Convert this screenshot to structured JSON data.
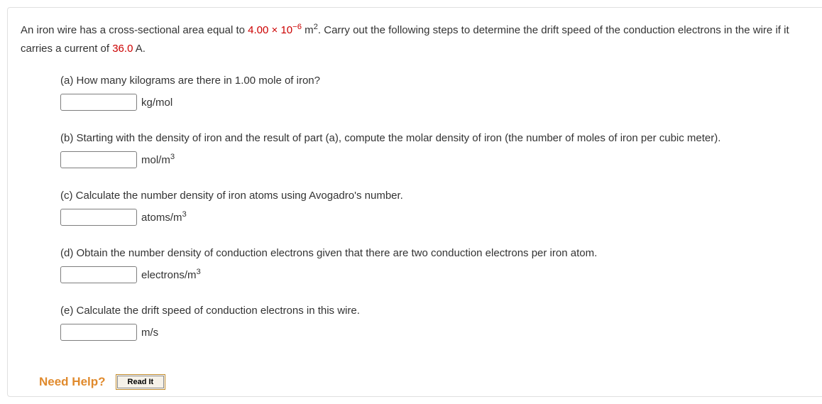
{
  "intro": {
    "text1": "An iron wire has a cross-sectional area equal to ",
    "value1_base": "4.00 × 10",
    "value1_exp": "−6",
    "unit1_base": " m",
    "unit1_exp": "2",
    "text2": ". Carry out the following steps to determine the drift speed of the conduction electrons in the wire if it carries a current of ",
    "value2": "36.0",
    "text3": " A."
  },
  "parts": {
    "a": {
      "prompt": "(a) How many kilograms are there in 1.00 mole of iron?",
      "unit": "kg/mol",
      "unit_sup": ""
    },
    "b": {
      "prompt": "(b) Starting with the density of iron and the result of part (a), compute the molar density of iron (the number of moles of iron per cubic meter).",
      "unit": "mol/m",
      "unit_sup": "3"
    },
    "c": {
      "prompt": "(c) Calculate the number density of iron atoms using Avogadro's number.",
      "unit": "atoms/m",
      "unit_sup": "3"
    },
    "d": {
      "prompt": "(d) Obtain the number density of conduction electrons given that there are two conduction electrons per iron atom.",
      "unit": "electrons/m",
      "unit_sup": "3"
    },
    "e": {
      "prompt": "(e) Calculate the drift speed of conduction electrons in this wire.",
      "unit": "m/s",
      "unit_sup": ""
    }
  },
  "help": {
    "label": "Need Help?",
    "button": "Read It"
  },
  "colors": {
    "highlight": "#cc0000",
    "help_label": "#e08a2d"
  }
}
